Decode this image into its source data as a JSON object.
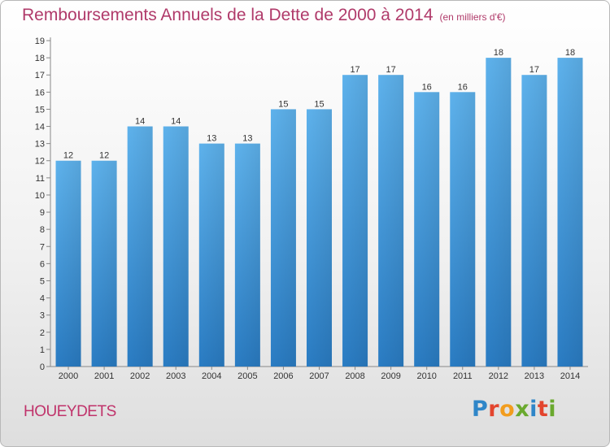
{
  "chart_data": {
    "type": "bar",
    "title": "Remboursements Annuels de la Dette de 2000 à 2014",
    "subtitle": "(en milliers d'€)",
    "categories": [
      "2000",
      "2001",
      "2002",
      "2003",
      "2004",
      "2005",
      "2006",
      "2007",
      "2008",
      "2009",
      "2010",
      "2011",
      "2012",
      "2013",
      "2014"
    ],
    "values": [
      12,
      12,
      14,
      14,
      13,
      13,
      15,
      15,
      17,
      17,
      16,
      16,
      18,
      17,
      18
    ],
    "ylim": [
      0,
      19
    ],
    "yticks": [
      0,
      1,
      2,
      3,
      4,
      5,
      6,
      7,
      8,
      9,
      10,
      11,
      12,
      13,
      14,
      15,
      16,
      17,
      18,
      19
    ],
    "xlabel": "",
    "ylabel": "",
    "grid": false,
    "bar_color": "#3b8fd6"
  },
  "footer": {
    "commune": "HOUEYDETS"
  },
  "logo": {
    "text": "Proxiti",
    "letters": [
      "P",
      "r",
      "o",
      "x",
      "i",
      "t",
      "i"
    ],
    "colors": [
      "#2f86c8",
      "#e3452e",
      "#f29d1e",
      "#6aa92e",
      "#2f86c8",
      "#e3452e",
      "#6aa92e"
    ]
  }
}
